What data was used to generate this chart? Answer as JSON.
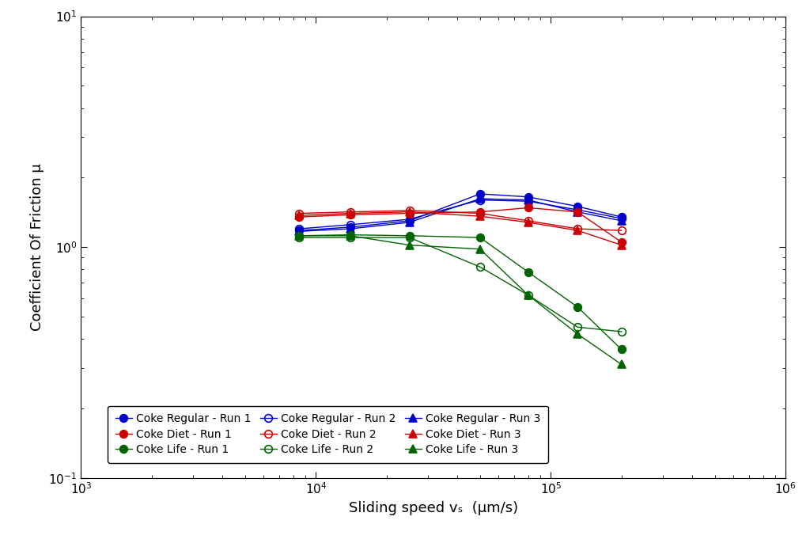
{
  "xlabel": "Sliding speed vₛ  (μm/s)",
  "ylabel": "Coefficient Of Friction μ",
  "xlim": [
    1000.0,
    1000000.0
  ],
  "ylim": [
    0.1,
    10
  ],
  "series": [
    {
      "label": "Coke Regular - Run 1",
      "color": "#0000cc",
      "marker": "o",
      "fillstyle": "full",
      "x": [
        8500,
        14000,
        25000,
        50000,
        80000,
        130000,
        200000
      ],
      "y": [
        1.18,
        1.22,
        1.3,
        1.7,
        1.65,
        1.5,
        1.35
      ]
    },
    {
      "label": "Coke Regular - Run 2",
      "color": "#0000cc",
      "marker": "o",
      "fillstyle": "none",
      "x": [
        8500,
        14000,
        25000,
        50000,
        80000,
        130000,
        200000
      ],
      "y": [
        1.2,
        1.25,
        1.32,
        1.6,
        1.58,
        1.45,
        1.33
      ]
    },
    {
      "label": "Coke Regular - Run 3",
      "color": "#0000cc",
      "marker": "^",
      "fillstyle": "full",
      "x": [
        8500,
        14000,
        25000,
        50000,
        80000,
        130000,
        200000
      ],
      "y": [
        1.17,
        1.2,
        1.28,
        1.62,
        1.6,
        1.42,
        1.3
      ]
    },
    {
      "label": "Coke Diet - Run 1",
      "color": "#cc0000",
      "marker": "o",
      "fillstyle": "full",
      "x": [
        8500,
        14000,
        25000,
        50000,
        80000,
        130000,
        200000
      ],
      "y": [
        1.35,
        1.38,
        1.4,
        1.42,
        1.48,
        1.42,
        1.05
      ]
    },
    {
      "label": "Coke Diet - Run 2",
      "color": "#cc0000",
      "marker": "o",
      "fillstyle": "none",
      "x": [
        8500,
        14000,
        25000,
        50000,
        80000,
        130000,
        200000
      ],
      "y": [
        1.4,
        1.42,
        1.44,
        1.4,
        1.3,
        1.2,
        1.18
      ]
    },
    {
      "label": "Coke Diet - Run 3",
      "color": "#cc0000",
      "marker": "^",
      "fillstyle": "full",
      "x": [
        8500,
        14000,
        25000,
        50000,
        80000,
        130000,
        200000
      ],
      "y": [
        1.37,
        1.4,
        1.42,
        1.36,
        1.28,
        1.18,
        1.02
      ]
    },
    {
      "label": "Coke Life - Run 1",
      "color": "#006400",
      "marker": "o",
      "fillstyle": "full",
      "x": [
        8500,
        14000,
        25000,
        50000,
        80000,
        130000,
        200000
      ],
      "y": [
        1.12,
        1.13,
        1.12,
        1.1,
        0.78,
        0.55,
        0.36
      ]
    },
    {
      "label": "Coke Life - Run 2",
      "color": "#006400",
      "marker": "o",
      "fillstyle": "none",
      "x": [
        8500,
        14000,
        25000,
        50000,
        80000,
        130000,
        200000
      ],
      "y": [
        1.1,
        1.1,
        1.1,
        0.82,
        0.62,
        0.45,
        0.43
      ]
    },
    {
      "label": "Coke Life - Run 3",
      "color": "#006400",
      "marker": "^",
      "fillstyle": "full",
      "x": [
        8500,
        14000,
        25000,
        50000,
        80000,
        130000,
        200000
      ],
      "y": [
        1.12,
        1.12,
        1.02,
        0.98,
        0.62,
        0.42,
        0.31
      ]
    }
  ],
  "legend_ncol": 3,
  "background_color": "#ffffff"
}
